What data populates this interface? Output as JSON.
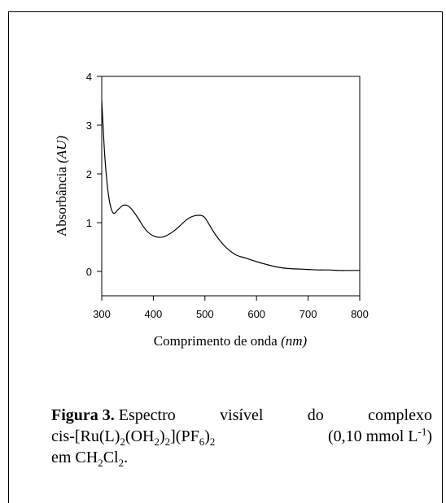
{
  "chart_data": {
    "type": "line",
    "xlabel": "Comprimento de onda",
    "xlabel_unit": "(nm)",
    "ylabel": "Absorbância",
    "ylabel_unit": "(AU)",
    "xlim": [
      300,
      800
    ],
    "ylim": [
      -0.5,
      4
    ],
    "x_ticks": [
      300,
      400,
      500,
      600,
      700,
      800
    ],
    "y_ticks": [
      0,
      1,
      2,
      3,
      4
    ],
    "grid": false,
    "series": [
      {
        "x": [
          300,
          303,
          306,
          310,
          314,
          318,
          322,
          326,
          330,
          335,
          340,
          345,
          350,
          355,
          360,
          370,
          380,
          390,
          400,
          410,
          420,
          430,
          440,
          450,
          460,
          470,
          480,
          490,
          495,
          500,
          505,
          510,
          520,
          530,
          540,
          550,
          560,
          570,
          580,
          600,
          620,
          640,
          660,
          680,
          700,
          720,
          740,
          760,
          780,
          800
        ],
        "values": [
          3.5,
          2.9,
          2.35,
          1.85,
          1.5,
          1.3,
          1.2,
          1.2,
          1.25,
          1.3,
          1.35,
          1.36,
          1.35,
          1.31,
          1.25,
          1.1,
          0.93,
          0.8,
          0.73,
          0.7,
          0.71,
          0.76,
          0.83,
          0.92,
          1.02,
          1.1,
          1.14,
          1.15,
          1.14,
          1.1,
          1.02,
          0.93,
          0.76,
          0.62,
          0.5,
          0.41,
          0.34,
          0.3,
          0.27,
          0.2,
          0.14,
          0.09,
          0.06,
          0.05,
          0.04,
          0.03,
          0.03,
          0.02,
          0.02,
          0.02
        ]
      }
    ]
  },
  "caption": {
    "label": "Figura 3.",
    "line1_words": [
      "Espectro",
      "visível",
      "do",
      "complexo"
    ],
    "complex_a": "cis-[Ru(L)",
    "sub_2a": "2",
    "complex_b": "(OH",
    "sub_2b": "2",
    "complex_c": ")",
    "sub_2c": "2",
    "complex_d": "](PF",
    "sub_6": "6",
    "complex_e": ")",
    "sub_2d": "2",
    "conc_a": "(0,10 mmol L",
    "sup_m1": "-1",
    "conc_b": ")",
    "solvent_a": "em CH",
    "sub_2e": "2",
    "solvent_b": "Cl",
    "sub_2f": "2",
    "solvent_c": "."
  }
}
